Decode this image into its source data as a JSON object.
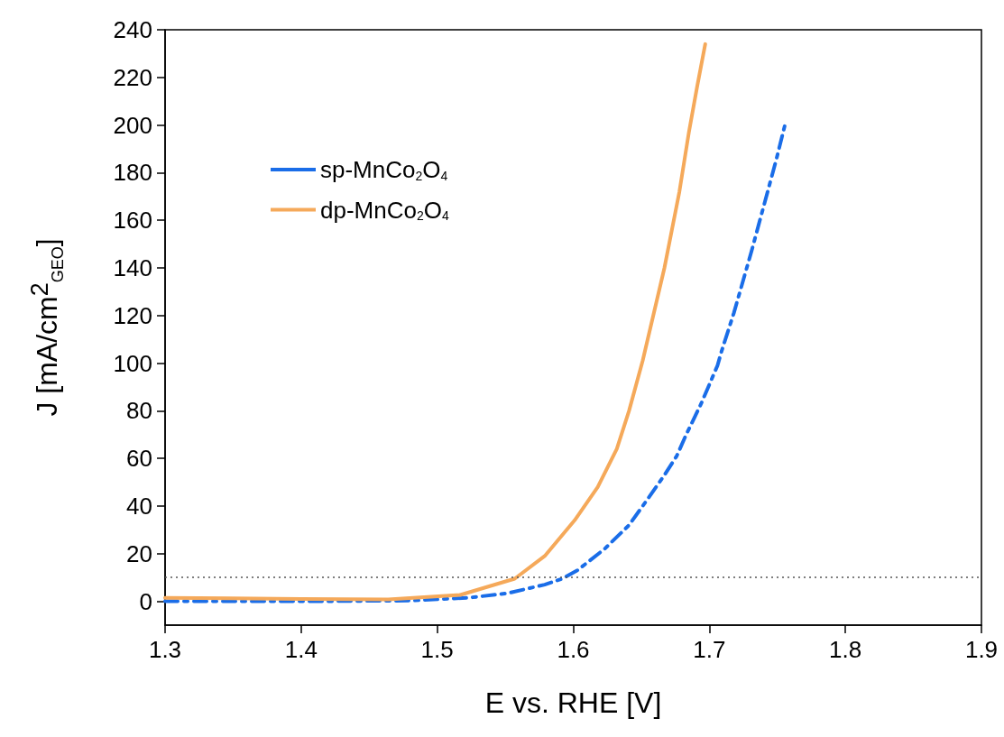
{
  "chart_data": {
    "type": "line",
    "xlabel": "E vs. RHE [V]",
    "ylabel": "J [mA/cm$^{2}$$_{GEO}$]",
    "xlim": [
      1.3,
      1.9
    ],
    "xticks": [
      1.3,
      1.4,
      1.5,
      1.6,
      1.7,
      1.8,
      1.9
    ],
    "ylim": [
      -10,
      240
    ],
    "yticks": [
      0,
      20,
      40,
      60,
      80,
      100,
      120,
      140,
      160,
      180,
      200,
      220,
      240
    ],
    "grid": false,
    "legend": "top left",
    "marker": "none",
    "ref_lines": [
      {
        "axis": "y",
        "value": 10,
        "color": "#555555",
        "line_style": "dotted"
      }
    ],
    "series": [
      {
        "name": "sp-MnCo$_{2}$O$_{4}$",
        "color": "#1a6de8",
        "line_style": "dashed",
        "x": [
          1.3,
          1.4,
          1.48,
          1.523,
          1.552,
          1.579,
          1.592,
          1.603,
          1.623,
          1.641,
          1.656,
          1.667,
          1.676,
          1.683,
          1.694,
          1.7,
          1.706,
          1.709,
          1.718,
          1.731,
          1.74,
          1.749,
          1.756
        ],
        "values": [
          0,
          0,
          0.3,
          1.5,
          3.4,
          7,
          9.5,
          13,
          22,
          32,
          44,
          53,
          61,
          70,
          83,
          91,
          99,
          105,
          121,
          147,
          166,
          185,
          201
        ]
      },
      {
        "name": "dp-MnCo$_{2}$O$_{4}$",
        "color": "#f5a95a",
        "line_style": "solid",
        "x": [
          1.3,
          1.4,
          1.464,
          1.517,
          1.557,
          1.579,
          1.601,
          1.618,
          1.632,
          1.641,
          1.651,
          1.667,
          1.678,
          1.685,
          1.691,
          1.697
        ],
        "values": [
          1.5,
          1,
          0.8,
          2.7,
          9.5,
          19,
          34,
          48,
          64,
          80,
          101,
          140,
          172,
          197,
          216,
          234
        ]
      }
    ]
  }
}
